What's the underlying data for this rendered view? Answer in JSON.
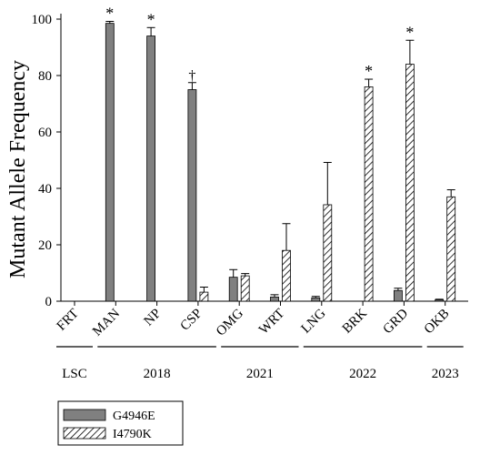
{
  "chart_data": {
    "type": "bar",
    "ylabel": "Mutant Allele Frequency",
    "ylim": [
      0,
      100
    ],
    "yticks": [
      0,
      20,
      40,
      60,
      80,
      100
    ],
    "categories": [
      "FRT",
      "MAN",
      "NP",
      "CSP",
      "OMG",
      "WRT",
      "LNG",
      "BRK",
      "GRD",
      "OKB"
    ],
    "series": [
      {
        "name": "G4946E",
        "fill": "#808080",
        "values": [
          null,
          98.5,
          94,
          75,
          null,
          1.5,
          1.2,
          null,
          3.8,
          0.5
        ],
        "errors": [
          null,
          0.7,
          3,
          2.5,
          null,
          0.8,
          0.5,
          null,
          0.8,
          0.2
        ]
      },
      {
        "name": "I4790K",
        "fill": "hatch",
        "values": [
          null,
          null,
          null,
          3.2,
          9,
          18,
          34.2,
          76,
          84,
          37
        ],
        "errors": [
          null,
          null,
          null,
          1.8,
          0.8,
          9.5,
          15,
          2.7,
          8.5,
          2.5
        ]
      }
    ],
    "extra_bars": [
      {
        "category": "OMG",
        "series": "G4946E",
        "value": 8.5,
        "error": 2.7
      }
    ],
    "annotations": [
      {
        "category": "MAN",
        "series": "G4946E",
        "text": "*"
      },
      {
        "category": "NP",
        "series": "G4946E",
        "text": "*"
      },
      {
        "category": "CSP",
        "series": "G4946E",
        "text": "†"
      },
      {
        "category": "BRK",
        "series": "I4790K",
        "text": "*"
      },
      {
        "category": "GRD",
        "series": "I4790K",
        "text": "*"
      }
    ],
    "year_groups": [
      {
        "label": "LSC",
        "from": "FRT",
        "to": "FRT"
      },
      {
        "label": "2018",
        "from": "MAN",
        "to": "CSP"
      },
      {
        "label": "2021",
        "from": "OMG",
        "to": "WRT"
      },
      {
        "label": "2022",
        "from": "LNG",
        "to": "GRD"
      },
      {
        "label": "2023",
        "from": "OKB",
        "to": "OKB"
      }
    ],
    "legend_position": "bottom-left"
  }
}
